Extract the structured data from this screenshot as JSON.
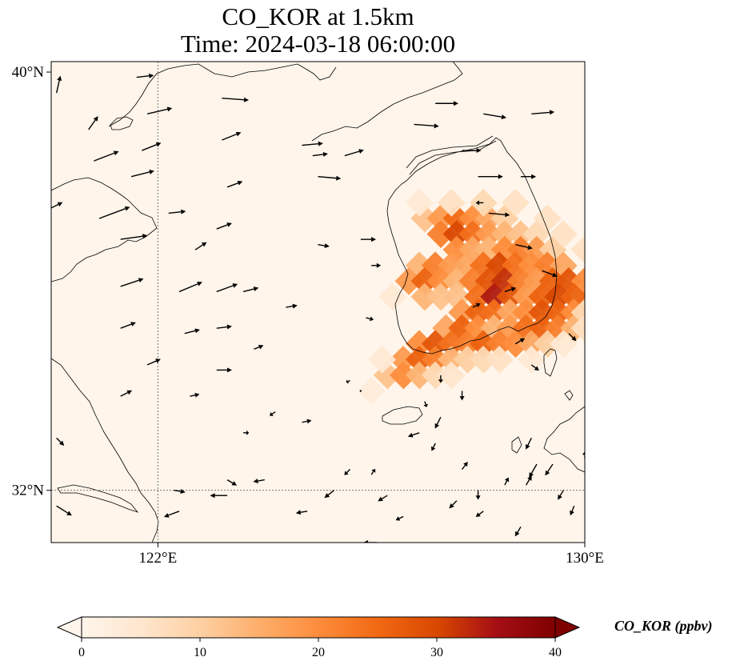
{
  "title": {
    "line1": "CO_KOR at 1.5km",
    "line2": "Time: 2024-03-18 06:00:00"
  },
  "map": {
    "lon_range": [
      120,
      130
    ],
    "lat_range": [
      31,
      40.2
    ],
    "gridlines": {
      "lon": [
        122
      ],
      "lat": [
        32
      ]
    },
    "x_ticks": [
      {
        "lon": 122,
        "label": "122°E"
      },
      {
        "lon": 130,
        "label": "130°E"
      }
    ],
    "y_ticks": [
      {
        "lat": 40,
        "label": "40°N"
      },
      {
        "lat": 32,
        "label": "32°N"
      }
    ],
    "background_color": "#fff5eb",
    "field_name": "CO_KOR",
    "field_cells": [
      [
        127.0,
        37.2,
        12
      ],
      [
        127.3,
        37.2,
        18
      ],
      [
        127.6,
        37.2,
        25
      ],
      [
        127.9,
        37.2,
        20
      ],
      [
        128.2,
        37.2,
        16
      ],
      [
        128.5,
        37.2,
        10
      ],
      [
        127.3,
        36.9,
        22
      ],
      [
        127.6,
        36.9,
        30
      ],
      [
        127.9,
        36.9,
        24
      ],
      [
        128.2,
        36.9,
        18
      ],
      [
        128.5,
        36.9,
        14
      ],
      [
        128.8,
        36.9,
        12
      ],
      [
        129.1,
        36.9,
        8
      ],
      [
        127.6,
        36.6,
        20
      ],
      [
        127.9,
        36.6,
        16
      ],
      [
        128.2,
        36.6,
        14
      ],
      [
        128.5,
        36.6,
        20
      ],
      [
        128.8,
        36.6,
        22
      ],
      [
        129.1,
        36.6,
        18
      ],
      [
        129.4,
        36.6,
        10
      ],
      [
        126.9,
        36.3,
        14
      ],
      [
        127.2,
        36.3,
        22
      ],
      [
        127.5,
        36.3,
        18
      ],
      [
        127.8,
        36.3,
        16
      ],
      [
        128.1,
        36.3,
        24
      ],
      [
        128.4,
        36.3,
        30
      ],
      [
        128.7,
        36.3,
        24
      ],
      [
        129.0,
        36.3,
        20
      ],
      [
        129.3,
        36.3,
        22
      ],
      [
        129.6,
        36.3,
        16
      ],
      [
        126.7,
        36.0,
        18
      ],
      [
        127.0,
        36.0,
        26
      ],
      [
        127.3,
        36.0,
        20
      ],
      [
        127.6,
        36.0,
        14
      ],
      [
        127.9,
        36.0,
        22
      ],
      [
        128.2,
        36.0,
        28
      ],
      [
        128.5,
        36.0,
        32
      ],
      [
        128.8,
        36.0,
        22
      ],
      [
        129.1,
        36.0,
        18
      ],
      [
        129.4,
        36.0,
        26
      ],
      [
        129.7,
        36.0,
        28
      ],
      [
        130.0,
        36.0,
        20
      ],
      [
        127.0,
        35.7,
        14
      ],
      [
        127.3,
        35.7,
        12
      ],
      [
        127.6,
        35.7,
        12
      ],
      [
        128.0,
        35.7,
        24
      ],
      [
        128.3,
        35.7,
        34
      ],
      [
        128.6,
        35.7,
        28
      ],
      [
        128.9,
        35.7,
        18
      ],
      [
        129.2,
        35.7,
        26
      ],
      [
        129.5,
        35.7,
        30
      ],
      [
        129.8,
        35.7,
        26
      ],
      [
        127.7,
        35.4,
        18
      ],
      [
        128.0,
        35.4,
        26
      ],
      [
        128.3,
        35.4,
        24
      ],
      [
        128.6,
        35.4,
        16
      ],
      [
        128.9,
        35.4,
        20
      ],
      [
        129.2,
        35.4,
        28
      ],
      [
        129.5,
        35.4,
        26
      ],
      [
        129.8,
        35.4,
        20
      ],
      [
        127.4,
        35.1,
        16
      ],
      [
        127.7,
        35.1,
        26
      ],
      [
        128.0,
        35.1,
        20
      ],
      [
        128.3,
        35.1,
        14
      ],
      [
        128.6,
        35.1,
        18
      ],
      [
        128.9,
        35.1,
        24
      ],
      [
        129.2,
        35.1,
        26
      ],
      [
        129.5,
        35.1,
        22
      ],
      [
        129.8,
        35.1,
        14
      ],
      [
        126.9,
        34.8,
        20
      ],
      [
        127.2,
        34.8,
        28
      ],
      [
        127.5,
        34.8,
        24
      ],
      [
        127.8,
        34.8,
        22
      ],
      [
        128.1,
        34.8,
        26
      ],
      [
        128.4,
        34.8,
        22
      ],
      [
        128.7,
        34.8,
        20
      ],
      [
        129.0,
        34.8,
        16
      ],
      [
        129.3,
        34.8,
        10
      ],
      [
        126.6,
        34.5,
        18
      ],
      [
        126.9,
        34.5,
        26
      ],
      [
        127.2,
        34.5,
        22
      ],
      [
        127.5,
        34.5,
        14
      ],
      [
        127.8,
        34.5,
        10
      ],
      [
        128.1,
        34.5,
        8
      ],
      [
        128.4,
        34.5,
        6
      ],
      [
        126.3,
        34.2,
        12
      ],
      [
        126.6,
        34.2,
        20
      ],
      [
        126.9,
        34.2,
        14
      ],
      [
        127.2,
        34.2,
        8
      ],
      [
        127.5,
        34.2,
        5
      ],
      [
        126.9,
        37.5,
        4
      ],
      [
        127.5,
        37.5,
        6
      ],
      [
        128.1,
        37.5,
        8
      ],
      [
        128.7,
        37.5,
        6
      ],
      [
        129.3,
        37.2,
        6
      ],
      [
        129.6,
        36.9,
        6
      ],
      [
        130.0,
        36.6,
        6
      ],
      [
        126.4,
        35.7,
        4
      ],
      [
        126.2,
        34.5,
        4
      ],
      [
        126.0,
        33.9,
        3
      ],
      [
        129.0,
        34.5,
        4
      ],
      [
        129.6,
        34.8,
        4
      ],
      [
        130.0,
        35.4,
        8
      ],
      [
        130.0,
        35.1,
        6
      ]
    ],
    "wind_vectors": [
      [
        120.1,
        39.6,
        0.2,
        0.9
      ],
      [
        120.7,
        38.9,
        0.5,
        0.7
      ],
      [
        120.8,
        38.3,
        1.3,
        0.5
      ],
      [
        120.0,
        37.4,
        0.6,
        0.3
      ],
      [
        120.9,
        37.2,
        1.6,
        0.6
      ],
      [
        121.3,
        36.8,
        1.4,
        0.2
      ],
      [
        121.3,
        35.9,
        1.2,
        0.4
      ],
      [
        121.3,
        35.1,
        0.8,
        0.3
      ],
      [
        121.8,
        34.4,
        0.7,
        0.3
      ],
      [
        121.3,
        33.8,
        0.6,
        0.3
      ],
      [
        120.1,
        33.0,
        0.4,
        -0.4
      ],
      [
        120.1,
        31.7,
        0.8,
        -0.5
      ],
      [
        121.5,
        38.0,
        1.2,
        0.3
      ],
      [
        121.7,
        38.5,
        1.0,
        0.4
      ],
      [
        121.8,
        39.2,
        1.3,
        0.3
      ],
      [
        121.6,
        39.9,
        0.9,
        0.1
      ],
      [
        122.2,
        37.3,
        0.9,
        0.1
      ],
      [
        122.4,
        35.8,
        1.2,
        0.5
      ],
      [
        122.5,
        35.0,
        0.8,
        0.2
      ],
      [
        122.6,
        33.8,
        0.5,
        0.1
      ],
      [
        122.7,
        36.6,
        0.6,
        0.4
      ],
      [
        123.2,
        39.5,
        1.4,
        -0.1
      ],
      [
        123.2,
        38.7,
        1.0,
        0.4
      ],
      [
        123.3,
        37.8,
        0.8,
        0.3
      ],
      [
        123.1,
        37.0,
        0.8,
        0.3
      ],
      [
        123.1,
        35.8,
        1.1,
        0.4
      ],
      [
        123.1,
        35.1,
        0.8,
        0.1
      ],
      [
        123.1,
        34.3,
        0.8,
        0.0
      ],
      [
        123.6,
        33.1,
        0.3,
        0.0
      ],
      [
        123.3,
        32.2,
        0.5,
        -0.3
      ],
      [
        123.6,
        35.8,
        0.8,
        0.2
      ],
      [
        123.8,
        34.7,
        0.5,
        0.2
      ],
      [
        124.4,
        35.5,
        0.6,
        0.1
      ],
      [
        124.2,
        33.5,
        -0.3,
        -0.2
      ],
      [
        124.7,
        33.3,
        0.5,
        0.1
      ],
      [
        124.0,
        32.2,
        -0.6,
        -0.1
      ],
      [
        124.8,
        31.6,
        -0.6,
        -0.1
      ],
      [
        123.3,
        31.9,
        -0.9,
        0.0
      ],
      [
        122.4,
        31.6,
        -0.8,
        -0.3
      ],
      [
        122.3,
        32.0,
        0.6,
        -0.1
      ],
      [
        124.7,
        38.6,
        1.1,
        0.1
      ],
      [
        124.9,
        38.4,
        0.8,
        0.1
      ],
      [
        125.0,
        38.0,
        1.2,
        -0.1
      ],
      [
        125.5,
        38.4,
        1.0,
        0.3
      ],
      [
        125.0,
        36.7,
        0.6,
        -0.1
      ],
      [
        125.8,
        36.8,
        0.8,
        0.0
      ],
      [
        125.9,
        35.3,
        0.4,
        -0.1
      ],
      [
        126.0,
        36.3,
        0.5,
        0.0
      ],
      [
        125.6,
        34.1,
        -0.2,
        -0.1
      ],
      [
        125.8,
        33.9,
        0.0,
        0.0
      ],
      [
        125.6,
        32.4,
        -0.3,
        -0.3
      ],
      [
        125.3,
        32.0,
        -0.5,
        -0.4
      ],
      [
        126.0,
        32.3,
        0.2,
        0.3
      ],
      [
        126.3,
        31.9,
        -0.5,
        -0.3
      ],
      [
        126.6,
        31.5,
        -0.4,
        -0.2
      ],
      [
        126.1,
        31.0,
        -0.7,
        0.0
      ],
      [
        126.8,
        39.0,
        1.3,
        -0.1
      ],
      [
        127.2,
        39.4,
        1.2,
        0.0
      ],
      [
        128.1,
        39.2,
        1.2,
        -0.2
      ],
      [
        129.0,
        39.2,
        1.2,
        0.1
      ],
      [
        127.7,
        38.5,
        1.0,
        0.0
      ],
      [
        128.0,
        38.0,
        1.3,
        0.0
      ],
      [
        128.1,
        37.5,
        -0.4,
        0.0
      ],
      [
        128.8,
        38.0,
        0.8,
        0.0
      ],
      [
        128.2,
        37.3,
        1.1,
        -0.1
      ],
      [
        128.7,
        36.7,
        0.9,
        -0.2
      ],
      [
        129.2,
        36.2,
        0.8,
        -0.3
      ],
      [
        127.9,
        35.5,
        0.4,
        0.2
      ],
      [
        128.5,
        35.8,
        0.6,
        0.2
      ],
      [
        128.7,
        34.8,
        0.5,
        0.3
      ],
      [
        129.0,
        34.4,
        0.4,
        -0.3
      ],
      [
        129.7,
        35.0,
        0.4,
        -0.4
      ],
      [
        127.3,
        34.2,
        0.0,
        -0.4
      ],
      [
        127.7,
        33.9,
        0.0,
        -0.5
      ],
      [
        127.0,
        33.7,
        0.1,
        -0.3
      ],
      [
        127.3,
        33.4,
        -0.3,
        -0.6
      ],
      [
        127.2,
        32.9,
        -0.2,
        -0.4
      ],
      [
        126.9,
        33.1,
        -0.6,
        -0.2
      ],
      [
        127.7,
        32.4,
        0.3,
        0.4
      ],
      [
        127.6,
        31.8,
        -0.4,
        -0.4
      ],
      [
        128.0,
        32.0,
        0.0,
        -0.5
      ],
      [
        128.1,
        31.6,
        -0.4,
        -0.3
      ],
      [
        128.5,
        32.1,
        0.2,
        0.4
      ],
      [
        128.9,
        32.1,
        0.3,
        0.5
      ],
      [
        129.1,
        32.5,
        -0.4,
        -0.7
      ],
      [
        129.4,
        32.5,
        -0.4,
        -0.6
      ],
      [
        129.0,
        33.0,
        -0.3,
        -0.6
      ],
      [
        129.6,
        32.0,
        -0.3,
        -0.5
      ],
      [
        129.8,
        31.7,
        -0.2,
        -0.5
      ],
      [
        128.8,
        31.3,
        -0.3,
        -0.5
      ],
      [
        130.0,
        32.6,
        0.0,
        0.4
      ]
    ],
    "colorbar": {
      "label": "CO_KOR (ppbv)",
      "vmin": 0,
      "vmax": 40,
      "ticks": [
        0,
        10,
        20,
        30,
        40
      ],
      "tick_labels": [
        "0",
        "10",
        "20",
        "30",
        "40"
      ],
      "colormap": [
        "#fff5eb",
        "#fee6ce",
        "#fdd0a2",
        "#fdae6b",
        "#fd8d3c",
        "#f16913",
        "#d94801",
        "#a50f15",
        "#7f0000"
      ]
    }
  }
}
